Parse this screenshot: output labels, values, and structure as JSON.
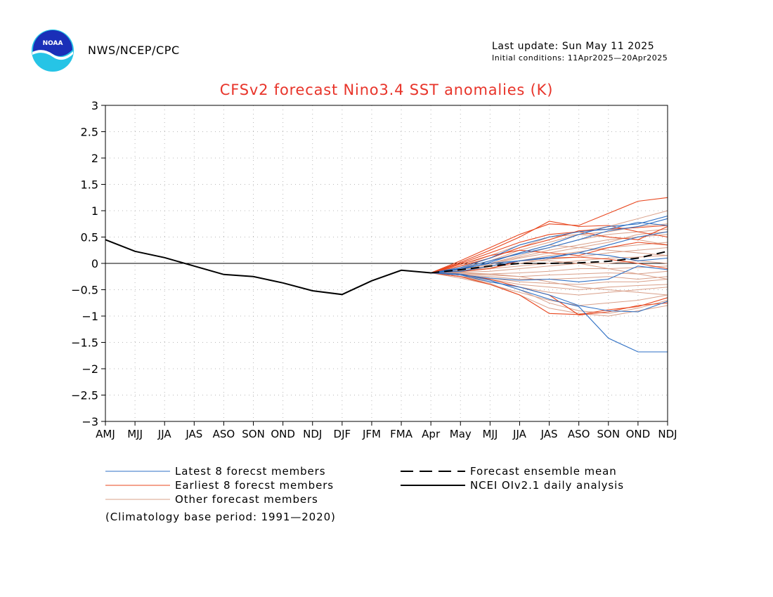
{
  "header": {
    "agency": "NWS/NCEP/CPC",
    "logo_text": "NOAA",
    "last_update": "Last update: Sun May 11 2025",
    "initial_conditions": "Initial conditions: 11Apr2025—20Apr2025"
  },
  "colors": {
    "title": "#e8342a",
    "latest_members": "#2d6fc4",
    "earliest_members": "#e8461e",
    "other_members": "#d9a08a",
    "ensemble_mean": "#000000",
    "analysis": "#000000",
    "grid": "#b8b8b8"
  },
  "legend": {
    "latest": "Latest 8 forecst members",
    "earliest": "Earliest 8 forecst members",
    "other": "Other forecast members",
    "mean": "Forecast ensemble mean",
    "analysis": "NCEI OIv2.1 daily analysis"
  },
  "note": "(Climatology base period: 1991—2020)",
  "chart_data": {
    "type": "line",
    "title": "CFSv2 forecast Nino3.4 SST anomalies (K)",
    "categories": [
      "AMJ",
      "MJJ",
      "JJA",
      "JAS",
      "ASO",
      "SON",
      "OND",
      "NDJ",
      "DJF",
      "JFM",
      "FMA",
      "Apr",
      "May",
      "MJJ",
      "JJA",
      "JAS",
      "ASO",
      "SON",
      "OND",
      "NDJ"
    ],
    "ylim": [
      -3,
      3
    ],
    "yticks": [
      "3",
      "2.5",
      "2",
      "1.5",
      "1",
      "0.5",
      "0",
      "−0.5",
      "−1",
      "−1.5",
      "−2",
      "−2.5",
      "−3"
    ],
    "ytick_values": [
      3,
      2.5,
      2,
      1.5,
      1,
      0.5,
      0,
      -0.5,
      -1,
      -1.5,
      -2,
      -2.5,
      -3
    ],
    "grid": true,
    "zero_line": true,
    "legend_position": "below",
    "analysis": {
      "x_index": [
        0,
        1,
        2,
        3,
        4,
        5,
        6,
        7,
        8,
        9,
        10,
        11
      ],
      "values": [
        0.45,
        0.23,
        0.11,
        -0.05,
        -0.21,
        -0.25,
        -0.37,
        -0.52,
        -0.59,
        -0.33,
        -0.13,
        -0.18
      ]
    },
    "ensemble_mean": {
      "x_index": [
        11,
        12,
        13,
        14,
        15,
        16,
        17,
        18,
        19
      ],
      "values": [
        -0.18,
        -0.12,
        -0.05,
        0.0,
        0.0,
        0.01,
        0.04,
        0.1,
        0.23
      ]
    },
    "latest_members": {
      "x_index": [
        11,
        12,
        13,
        14,
        15,
        16,
        17,
        18,
        19
      ],
      "members": [
        [
          -0.18,
          -0.12,
          0.02,
          0.2,
          0.35,
          0.55,
          0.7,
          0.75,
          0.9
        ],
        [
          -0.18,
          -0.1,
          0.05,
          0.18,
          0.3,
          0.45,
          0.62,
          0.7,
          0.85
        ],
        [
          -0.18,
          -0.08,
          0.1,
          0.35,
          0.5,
          0.6,
          0.65,
          0.78,
          0.72
        ],
        [
          -0.18,
          -0.2,
          -0.32,
          -0.5,
          -0.68,
          -0.82,
          -1.42,
          -1.68,
          -1.68
        ],
        [
          -0.18,
          -0.22,
          -0.35,
          -0.45,
          -0.6,
          -0.8,
          -0.9,
          -0.92,
          -0.72
        ],
        [
          -0.18,
          -0.15,
          -0.05,
          0.05,
          0.12,
          0.2,
          0.35,
          0.5,
          0.6
        ],
        [
          -0.18,
          -0.22,
          -0.28,
          -0.32,
          -0.3,
          -0.35,
          -0.3,
          -0.05,
          -0.12
        ],
        [
          -0.18,
          -0.1,
          0.0,
          0.05,
          0.1,
          0.2,
          0.15,
          0.05,
          0.1
        ]
      ]
    },
    "earliest_members": {
      "x_index": [
        11,
        12,
        13,
        14,
        15,
        16,
        17,
        18,
        19
      ],
      "members": [
        [
          -0.18,
          0.05,
          0.3,
          0.55,
          0.75,
          0.72,
          0.95,
          1.18,
          1.25
        ],
        [
          -0.18,
          0.02,
          0.25,
          0.5,
          0.8,
          0.7,
          0.72,
          0.6,
          0.5
        ],
        [
          -0.18,
          0.0,
          0.2,
          0.4,
          0.55,
          0.6,
          0.5,
          0.45,
          0.7
        ],
        [
          -0.18,
          -0.05,
          0.1,
          0.3,
          0.45,
          0.62,
          0.65,
          0.68,
          0.72
        ],
        [
          -0.18,
          -0.02,
          0.15,
          0.25,
          0.2,
          0.15,
          0.3,
          0.4,
          0.35
        ],
        [
          -0.18,
          -0.2,
          -0.3,
          -0.45,
          -0.6,
          -0.98,
          -0.92,
          -0.8,
          -0.75
        ],
        [
          -0.18,
          -0.25,
          -0.4,
          -0.6,
          -0.95,
          -0.97,
          -0.88,
          -0.82,
          -0.65
        ],
        [
          -0.18,
          -0.15,
          -0.1,
          0.05,
          0.1,
          0.12,
          0.08,
          0.0,
          -0.1
        ]
      ]
    },
    "other_members": {
      "x_index": [
        11,
        12,
        13,
        14,
        15,
        16,
        17,
        18,
        19
      ],
      "members": [
        [
          -0.18,
          -0.05,
          0.1,
          0.3,
          0.5,
          0.6,
          0.7,
          0.85,
          1.0
        ],
        [
          -0.18,
          -0.08,
          0.05,
          0.25,
          0.4,
          0.55,
          0.6,
          0.7,
          0.75
        ],
        [
          -0.18,
          -0.1,
          0.0,
          0.15,
          0.3,
          0.45,
          0.55,
          0.6,
          0.65
        ],
        [
          -0.18,
          -0.12,
          -0.02,
          0.1,
          0.2,
          0.3,
          0.4,
          0.55,
          0.6
        ],
        [
          -0.18,
          -0.1,
          0.0,
          0.12,
          0.25,
          0.35,
          0.45,
          0.5,
          0.55
        ],
        [
          -0.18,
          -0.15,
          -0.05,
          0.05,
          0.15,
          0.22,
          0.3,
          0.35,
          0.4
        ],
        [
          -0.18,
          -0.14,
          -0.08,
          0.0,
          0.08,
          0.12,
          0.2,
          0.25,
          0.3
        ],
        [
          -0.18,
          -0.16,
          -0.1,
          -0.05,
          0.0,
          0.05,
          0.1,
          0.12,
          0.15
        ],
        [
          -0.18,
          -0.17,
          -0.15,
          -0.1,
          -0.05,
          0.0,
          0.0,
          0.05,
          0.0
        ],
        [
          -0.18,
          -0.2,
          -0.2,
          -0.18,
          -0.15,
          -0.1,
          -0.1,
          -0.08,
          -0.05
        ],
        [
          -0.18,
          -0.2,
          -0.22,
          -0.25,
          -0.22,
          -0.2,
          -0.18,
          -0.2,
          -0.15
        ],
        [
          -0.18,
          -0.22,
          -0.25,
          -0.3,
          -0.3,
          -0.28,
          -0.25,
          -0.3,
          -0.25
        ],
        [
          -0.18,
          -0.22,
          -0.28,
          -0.35,
          -0.38,
          -0.4,
          -0.35,
          -0.35,
          -0.3
        ],
        [
          -0.18,
          -0.25,
          -0.3,
          -0.4,
          -0.45,
          -0.5,
          -0.45,
          -0.42,
          -0.4
        ],
        [
          -0.18,
          -0.25,
          -0.35,
          -0.45,
          -0.55,
          -0.6,
          -0.55,
          -0.5,
          -0.45
        ],
        [
          -0.18,
          -0.28,
          -0.4,
          -0.55,
          -0.7,
          -0.8,
          -0.75,
          -0.7,
          -0.6
        ],
        [
          -0.18,
          -0.25,
          -0.38,
          -0.6,
          -0.85,
          -0.95,
          -1.0,
          -0.9,
          -0.8
        ],
        [
          -0.18,
          -0.22,
          -0.32,
          -0.5,
          -0.75,
          -0.9,
          -0.95,
          -0.85,
          -0.7
        ],
        [
          -0.18,
          -0.1,
          0.05,
          0.2,
          0.35,
          0.3,
          0.25,
          0.2,
          0.15
        ],
        [
          -0.18,
          -0.05,
          0.15,
          0.35,
          0.5,
          0.55,
          0.5,
          0.45,
          0.35
        ],
        [
          -0.18,
          -0.12,
          -0.05,
          0.05,
          0.05,
          0.0,
          -0.1,
          -0.2,
          -0.3
        ],
        [
          -0.18,
          -0.18,
          -0.2,
          -0.25,
          -0.35,
          -0.45,
          -0.5,
          -0.55,
          -0.6
        ]
      ]
    }
  }
}
